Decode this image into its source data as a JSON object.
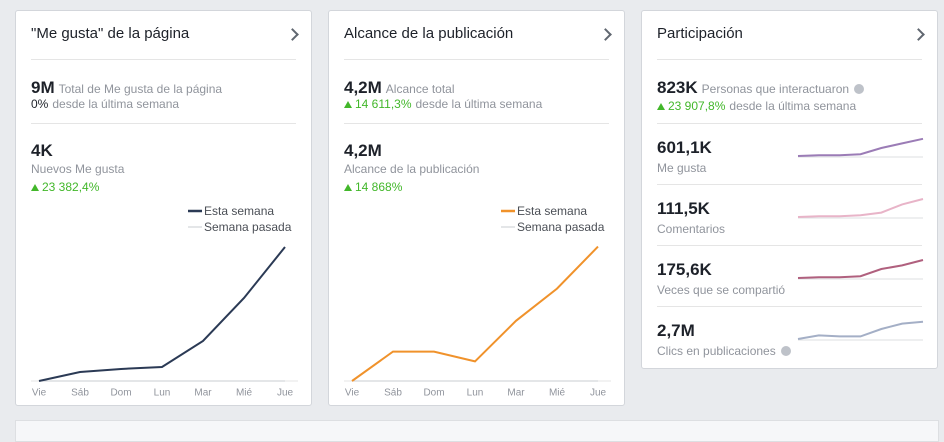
{
  "cards": [
    {
      "title": "\"Me gusta\" de la página",
      "metric": {
        "value": "9M",
        "label": "Total de Me gusta de la página",
        "change": "0%",
        "change_label": "desde la última semana"
      },
      "detail": {
        "value": "4K",
        "label": "Nuevos Me gusta",
        "change": "23 382,4%"
      },
      "chart": {
        "type": "line",
        "categories": [
          "Vie",
          "Sáb",
          "Dom",
          "Lun",
          "Mar",
          "Mié",
          "Jue"
        ],
        "ylim": [
          0,
          100
        ],
        "series": [
          {
            "name": "Esta semana",
            "color": "#2b3a55",
            "values": [
              0,
              6.4,
              8.6,
              10,
              28.6,
              59.3,
              95.7
            ]
          },
          {
            "name": "Semana pasada",
            "color": "#c9ccd1",
            "values": [
              0,
              0,
              0,
              0,
              0,
              0,
              0
            ]
          }
        ]
      }
    },
    {
      "title": "Alcance de la publicación",
      "metric": {
        "value": "4,2M",
        "label": "Alcance total",
        "change": "14 611,3%",
        "change_label": "desde la última semana"
      },
      "detail": {
        "value": "4,2M",
        "label": "Alcance de la publicación",
        "change": "14 868%"
      },
      "chart": {
        "type": "line",
        "categories": [
          "Vie",
          "Sáb",
          "Dom",
          "Lun",
          "Mar",
          "Mié",
          "Jue"
        ],
        "ylim": [
          0,
          100
        ],
        "series": [
          {
            "name": "Esta semana",
            "color": "#f0922b",
            "values": [
              0,
              21,
              21,
              14,
              43,
              66,
              96
            ]
          },
          {
            "name": "Semana pasada",
            "color": "#c9ccd1",
            "values": [
              0,
              0,
              0,
              0,
              0,
              0,
              0
            ]
          }
        ]
      }
    }
  ],
  "engagement": {
    "title": "Participación",
    "metric": {
      "value": "823K",
      "label": "Personas que interactuaron",
      "change": "23 907,8%",
      "change_label": "desde la última semana"
    },
    "ylim": [
      0,
      100
    ],
    "rows": [
      {
        "value": "601,1K",
        "label": "Me gusta",
        "color": "#9b7cb6",
        "values": [
          5,
          9,
          9,
          14,
          45,
          68,
          91
        ]
      },
      {
        "value": "111,5K",
        "label": "Comentarios",
        "color": "#e8b4c8",
        "values": [
          5,
          9,
          9,
          14,
          27,
          68,
          95
        ]
      },
      {
        "value": "175,6K",
        "label": "Veces que se compartió",
        "color": "#b0607e",
        "values": [
          5,
          9,
          9,
          14,
          50,
          68,
          95
        ]
      },
      {
        "value": "2,7M",
        "label": "Clics en publicaciones",
        "color": "#a4afc6",
        "values": [
          5,
          23,
          18,
          18,
          55,
          82,
          91
        ]
      }
    ]
  }
}
